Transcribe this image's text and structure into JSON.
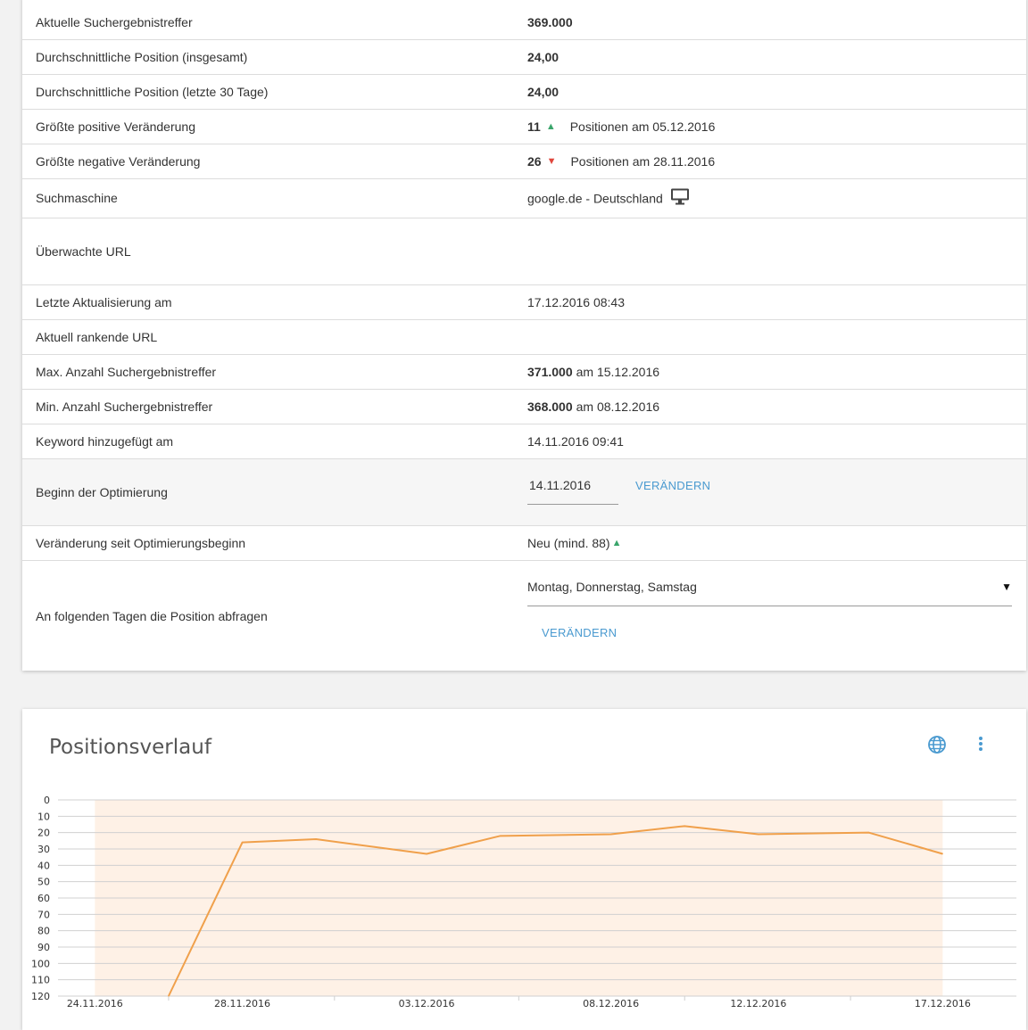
{
  "details": {
    "rows": [
      {
        "label": "Aktuelle Suchergebnistreffer",
        "value": "369.000"
      },
      {
        "label": "Durchschnittliche Position (insgesamt)",
        "value": "24,00"
      },
      {
        "label": "Durchschnittliche Position (letzte 30 Tage)",
        "value": "24,00"
      },
      {
        "label": "Größte positive Veränderung",
        "value": "11",
        "suffix": "Positionen am 05.12.2016"
      },
      {
        "label": "Größte negative Veränderung",
        "value": "26",
        "suffix": "Positionen am 28.11.2016"
      },
      {
        "label": "Suchmaschine",
        "value": "google.de - Deutschland",
        "icon": "desktop-monitor-icon"
      },
      {
        "label": "Überwachte URL",
        "value": ""
      },
      {
        "label": "Letzte Aktualisierung am",
        "value": "17.12.2016 08:43"
      },
      {
        "label": "Aktuell rankende URL",
        "value": ""
      },
      {
        "label": "Max. Anzahl Suchergebnistreffer",
        "value": "371.000",
        "suffix": "am 15.12.2016"
      },
      {
        "label": "Min. Anzahl Suchergebnistreffer",
        "value": "368.000",
        "suffix": "am 08.12.2016"
      },
      {
        "label": "Keyword hinzugefügt am",
        "value": "14.11.2016 09:41"
      }
    ],
    "optimization": {
      "label": "Beginn der Optimierung",
      "date_value": "14.11.2016",
      "change_label": "VERÄNDERN"
    },
    "change_since": {
      "label": "Veränderung seit Optimierungsbeginn",
      "value": "Neu (mind. 88)"
    },
    "query_days": {
      "label": "An folgenden Tagen die Position abfragen",
      "selected": "Montag, Donnerstag, Samstag",
      "change_label": "VERÄNDERN"
    }
  },
  "chart_card": {
    "title": "Positionsverlauf",
    "icons": [
      "globe-icon",
      "more-vert-icon"
    ]
  },
  "colors": {
    "accent": "#4a9ad0",
    "positive": "#3aa56b",
    "negative": "#e0473d",
    "line": "#f0a04b",
    "band": "#fef1e6"
  },
  "chart_data": {
    "type": "line",
    "title": "Positionsverlauf",
    "xlabel": "",
    "ylabel": "",
    "y_reversed": true,
    "ylim": [
      0,
      120
    ],
    "yticks": [
      0,
      10,
      20,
      30,
      40,
      50,
      60,
      70,
      80,
      90,
      100,
      110,
      120
    ],
    "xlim": [
      "23.11.2016",
      "19.12.2016"
    ],
    "xtick_labels": [
      "24.11.2016",
      "28.11.2016",
      "03.12.2016",
      "08.12.2016",
      "12.12.2016",
      "17.12.2016"
    ],
    "band": [
      "24.11.2016",
      "17.12.2016"
    ],
    "grid": true,
    "series": [
      {
        "x": [
          "26.11.2016",
          "28.11.2016",
          "30.11.2016",
          "03.12.2016",
          "05.12.2016",
          "08.12.2016",
          "10.12.2016",
          "12.12.2016",
          "15.12.2016",
          "17.12.2016"
        ],
        "values": [
          120,
          26,
          24,
          33,
          22,
          21,
          16,
          21,
          20,
          33
        ]
      }
    ]
  }
}
